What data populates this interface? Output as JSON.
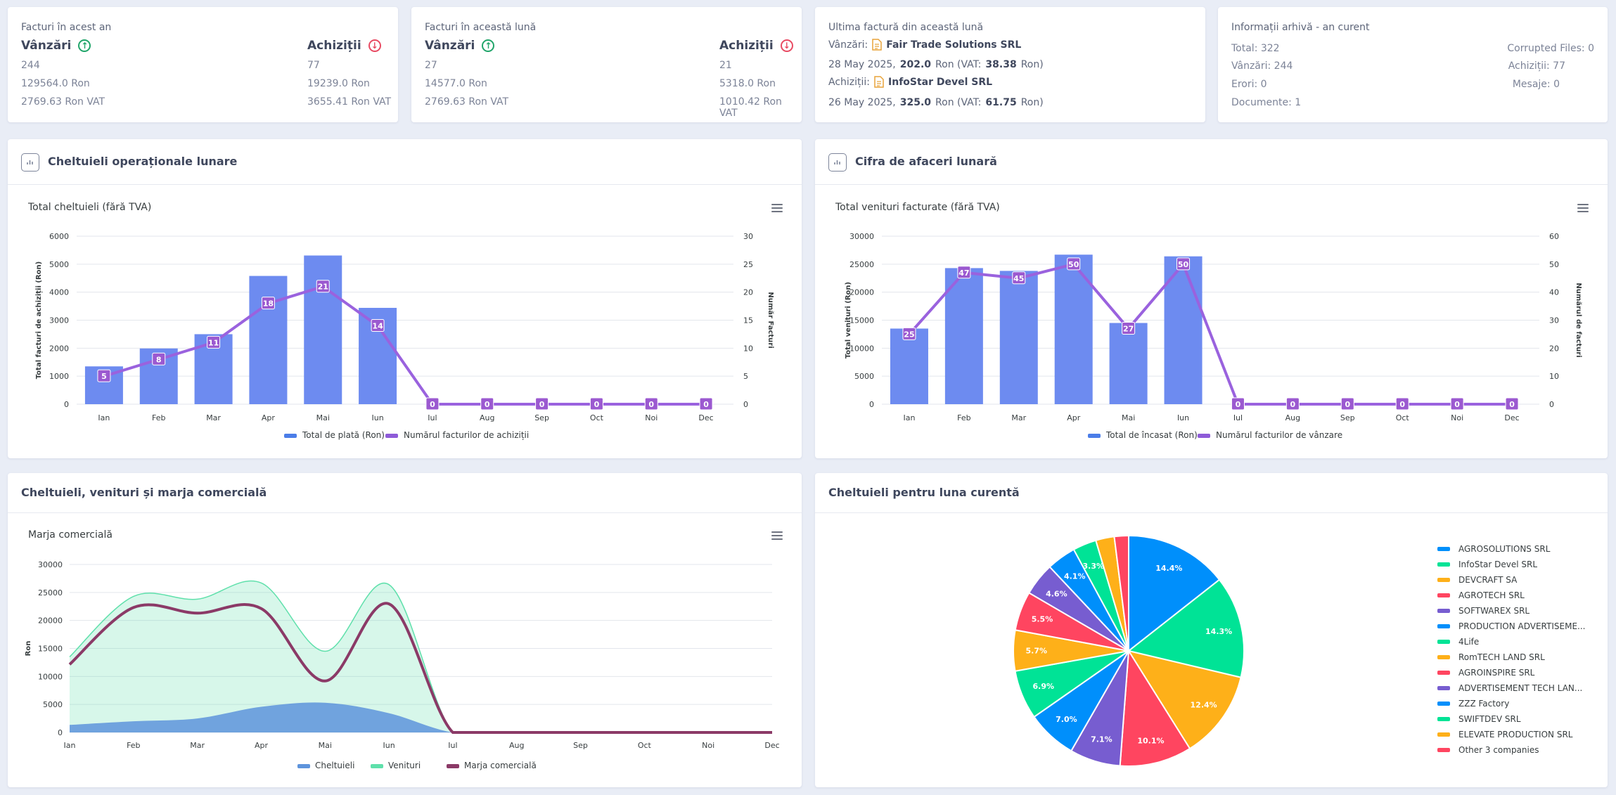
{
  "year_card": {
    "title": "Facturi în acest an",
    "sales": {
      "label": "Vânzări",
      "count": "244",
      "amount": "129564.0 Ron",
      "vat": "2769.63 Ron VAT"
    },
    "purchases": {
      "label": "Achiziții",
      "count": "77",
      "amount": "19239.0 Ron",
      "vat": "3655.41 Ron VAT"
    }
  },
  "month_card": {
    "title": "Facturi în această lună",
    "sales": {
      "label": "Vânzări",
      "count": "27",
      "amount": "14577.0 Ron",
      "vat": "2769.63 Ron VAT"
    },
    "purchases": {
      "label": "Achiziții",
      "count": "21",
      "amount": "5318.0 Ron",
      "vat": "1010.42 Ron VAT"
    }
  },
  "last_invoice": {
    "title": "Ultima factură din această lună",
    "sales_label": "Vânzări:",
    "sales_company": "Fair Trade Solutions SRL",
    "sales_date": "28 May 2025,",
    "sales_amount": "202.0",
    "sales_ron_vat": "Ron (VAT:",
    "sales_vat": "38.38",
    "sales_suffix": "Ron)",
    "purch_label": "Achiziții:",
    "purch_company": "InfoStar Devel SRL",
    "purch_date": "26 May 2025,",
    "purch_amount": "325.0",
    "purch_ron_vat": "Ron (VAT:",
    "purch_vat": "61.75",
    "purch_suffix": "Ron)"
  },
  "archive": {
    "title": "Informații arhivă - an curent",
    "total": "Total: 322",
    "sales": "Vânzări: 244",
    "errors": "Erori: 0",
    "documents": "Documente: 1",
    "corrupted": "Corrupted Files: 0",
    "purchases": "Achiziții: 77",
    "messages": "Mesaje: 0"
  },
  "months": [
    "Ian",
    "Feb",
    "Mar",
    "Apr",
    "Mai",
    "Iun",
    "Iul",
    "Aug",
    "Sep",
    "Oct",
    "Noi",
    "Dec"
  ],
  "expenses_panel": {
    "header": "Cheltuieli operaționale lunare",
    "chart_data": {
      "type": "bar",
      "title": "Total cheltuieli (fără TVA)",
      "ylabel": "Total facturi de achiziții (Ron)",
      "y2label": "Număr Facturi",
      "ylim": [
        0,
        6000
      ],
      "y2lim": [
        0,
        30
      ],
      "yticks": [
        "0",
        "1000",
        "2000",
        "3000",
        "4000",
        "5000",
        "6000"
      ],
      "y2ticks": [
        "0",
        "5",
        "10",
        "15",
        "20",
        "25",
        "30"
      ],
      "series": [
        {
          "name": "Total de plată (Ron)",
          "type": "bar",
          "values": [
            1350,
            1990,
            2500,
            4580,
            5310,
            3440,
            0,
            0,
            0,
            0,
            0,
            0
          ]
        },
        {
          "name": "Numărul facturilor de achiziții",
          "type": "line",
          "values": [
            5,
            8,
            11,
            18,
            21,
            14,
            0,
            0,
            0,
            0,
            0,
            0
          ]
        }
      ]
    }
  },
  "revenue_panel": {
    "header": "Cifra de afaceri lunară",
    "chart_data": {
      "type": "bar",
      "title": "Total venituri facturate (fără TVA)",
      "ylabel": "Total venituri (Ron)",
      "y2label": "Numărul de facturi",
      "ylim": [
        0,
        30000
      ],
      "y2lim": [
        0,
        60
      ],
      "yticks": [
        "0",
        "5000",
        "10000",
        "15000",
        "20000",
        "25000",
        "30000"
      ],
      "y2ticks": [
        "0",
        "10",
        "20",
        "30",
        "40",
        "50",
        "60"
      ],
      "series": [
        {
          "name": "Total de încasat (Ron)",
          "type": "bar",
          "values": [
            13500,
            24300,
            23800,
            26700,
            14500,
            26400,
            0,
            0,
            0,
            0,
            0,
            0
          ]
        },
        {
          "name": "Numărul facturilor de vânzare",
          "type": "line",
          "values": [
            25,
            47,
            45,
            50,
            27,
            50,
            0,
            0,
            0,
            0,
            0,
            0
          ]
        }
      ]
    }
  },
  "margin_panel": {
    "header": "Cheltuieli, venituri și marja comercială",
    "chart_data": {
      "type": "area",
      "title": "Marja comercială",
      "ylabel": "Ron",
      "ylim": [
        0,
        30000
      ],
      "yticks": [
        "0",
        "5000",
        "10000",
        "15000",
        "20000",
        "25000",
        "30000"
      ],
      "series": [
        {
          "name": "Cheltuieli",
          "color": "#5e94dc",
          "values": [
            1350,
            1990,
            2500,
            4580,
            5310,
            3440,
            0,
            0,
            0,
            0,
            0,
            0
          ]
        },
        {
          "name": "Venituri",
          "color": "#5fe0ab",
          "values": [
            13500,
            24300,
            23800,
            26700,
            14500,
            26400,
            0,
            0,
            0,
            0,
            0,
            0
          ]
        },
        {
          "name": "Marja comercială",
          "color": "#8b3a67",
          "values": [
            12150,
            22310,
            21300,
            22120,
            9190,
            22960,
            0,
            0,
            0,
            0,
            0,
            0
          ]
        }
      ]
    }
  },
  "pie_panel": {
    "header": "Cheltuieli pentru luna curentă",
    "chart_data": {
      "type": "pie",
      "slices": [
        {
          "name": "AGROSOLUTIONS SRL",
          "value": 14.4,
          "label": "14.4%",
          "color": "#008ffb"
        },
        {
          "name": "InfoStar Devel SRL",
          "value": 14.3,
          "label": "14.3%",
          "color": "#00e396"
        },
        {
          "name": "DEVCRAFT SA",
          "value": 12.4,
          "label": "12.4%",
          "color": "#feb019"
        },
        {
          "name": "AGROTECH SRL",
          "value": 10.1,
          "label": "10.1%",
          "color": "#ff4560"
        },
        {
          "name": "SOFTWAREX SRL",
          "value": 7.1,
          "label": "7.1%",
          "color": "#775dd0"
        },
        {
          "name": "PRODUCTION ADVERTISEME...",
          "value": 7.0,
          "label": "7.0%",
          "color": "#008ffb"
        },
        {
          "name": "4Life",
          "value": 6.9,
          "label": "6.9%",
          "color": "#00e396"
        },
        {
          "name": "RomTECH LAND SRL",
          "value": 5.7,
          "label": "5.7%",
          "color": "#feb019"
        },
        {
          "name": "AGROINSPIRE SRL",
          "value": 5.5,
          "label": "5.5%",
          "color": "#ff4560"
        },
        {
          "name": "ADVERTISEMENT TECH LAN...",
          "value": 4.6,
          "label": "4.6%",
          "color": "#775dd0"
        },
        {
          "name": "ZZZ Factory",
          "value": 4.1,
          "label": "4.1%",
          "color": "#008ffb"
        },
        {
          "name": "SWIFTDEV SRL",
          "value": 3.3,
          "label": "3.3%",
          "color": "#00e396"
        },
        {
          "name": "ELEVATE PRODUCTION SRL",
          "value": 2.6,
          "label": "",
          "color": "#feb019"
        },
        {
          "name": "Other 3 companies",
          "value": 2.0,
          "label": "",
          "color": "#ff4560"
        }
      ]
    }
  }
}
